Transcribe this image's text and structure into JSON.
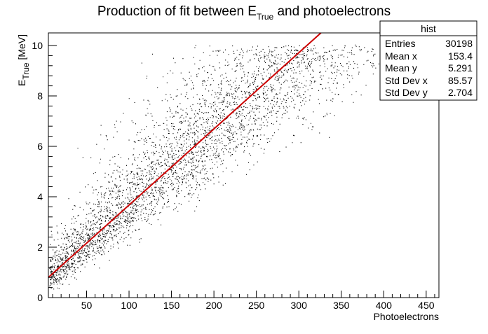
{
  "chart_data": {
    "type": "scatter",
    "title": {
      "main": "Production of fit between E",
      "sub": "True",
      "rest": " and photoelectrons"
    },
    "xlabel": "Photoelectrons",
    "ylabel": {
      "main": "E",
      "sub": "True",
      "rest": " [MeV]"
    },
    "xlim": [
      5,
      465
    ],
    "ylim": [
      0,
      10.5
    ],
    "xticks": [
      50,
      100,
      150,
      200,
      250,
      300,
      350,
      400,
      450
    ],
    "yticks": [
      0,
      2,
      4,
      6,
      8,
      10
    ],
    "series": [
      {
        "kind": "points",
        "color": "#000000",
        "description_density_centerline": [
          [
            10,
            0.6
          ],
          [
            30,
            1.2
          ],
          [
            50,
            1.8
          ],
          [
            80,
            2.7
          ],
          [
            110,
            3.8
          ],
          [
            150,
            5.2
          ],
          [
            200,
            7.0
          ],
          [
            250,
            8.6
          ],
          [
            280,
            9.6
          ],
          [
            300,
            9.95
          ],
          [
            350,
            9.95
          ]
        ]
      },
      {
        "kind": "fit-line",
        "color": "#cc0000",
        "x": [
          5,
          326
        ],
        "y": [
          0.8,
          10.5
        ]
      }
    ],
    "stats_box": {
      "title": "hist",
      "rows": [
        {
          "label": "Entries",
          "value": "30198"
        },
        {
          "label": "Mean x",
          "value": "153.4"
        },
        {
          "label": "Mean y",
          "value": "5.291"
        },
        {
          "label": "Std Dev x",
          "value": "85.57"
        },
        {
          "label": "Std Dev y",
          "value": "2.704"
        }
      ]
    }
  }
}
